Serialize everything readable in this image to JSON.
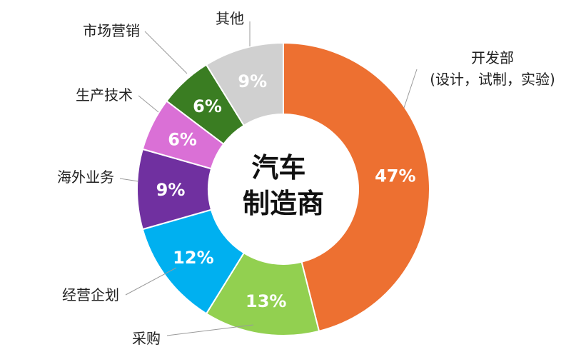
{
  "chart_data": {
    "type": "pie",
    "variant": "donut",
    "center_title_lines": [
      "汽车",
      "制造商"
    ],
    "slices": [
      {
        "category_lines": [
          "开发部",
          "(设计，试制，实验)"
        ],
        "value": 47,
        "label": "47%",
        "color": "#ED7031"
      },
      {
        "category_lines": [
          "采购"
        ],
        "value": 13,
        "label": "13%",
        "color": "#92D050"
      },
      {
        "category_lines": [
          "经营企划"
        ],
        "value": 12,
        "label": "12%",
        "color": "#00B0F0"
      },
      {
        "category_lines": [
          "海外业务"
        ],
        "value": 9,
        "label": "9%",
        "color": "#7030A0"
      },
      {
        "category_lines": [
          "生产技术"
        ],
        "value": 6,
        "label": "6%",
        "color": "#DA70D6"
      },
      {
        "category_lines": [
          "市场营销"
        ],
        "value": 6,
        "label": "6%",
        "color": "#3A7D22"
      },
      {
        "category_lines": [
          "其他"
        ],
        "value": 9,
        "label": "9%",
        "color": "#D0D0D0"
      }
    ],
    "legend": "none"
  }
}
